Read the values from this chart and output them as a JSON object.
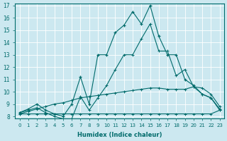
{
  "xlabel": "Humidex (Indice chaleur)",
  "bg_color": "#cce8f0",
  "line_color": "#006b6b",
  "grid_color": "#ffffff",
  "xmin": 0,
  "xmax": 23,
  "ymin": 8,
  "ymax": 17,
  "line1_x": [
    0,
    1,
    2,
    3,
    4,
    5,
    6,
    7,
    8,
    9,
    10,
    11,
    12,
    13,
    14,
    15,
    16,
    17,
    18,
    19,
    20,
    21,
    22,
    23
  ],
  "line1_y": [
    8.2,
    8.2,
    8.2,
    8.2,
    8.2,
    8.2,
    8.2,
    8.2,
    8.2,
    8.2,
    8.2,
    8.2,
    8.2,
    8.2,
    8.2,
    8.2,
    8.2,
    8.2,
    8.2,
    8.2,
    8.2,
    8.2,
    8.2,
    8.5
  ],
  "line2_x": [
    0,
    1,
    2,
    3,
    4,
    5,
    6,
    7,
    8,
    9,
    10,
    11,
    12,
    13,
    14,
    15,
    16,
    17,
    18,
    19,
    20,
    21,
    22,
    23
  ],
  "line2_y": [
    8.2,
    8.4,
    8.6,
    8.8,
    9.0,
    9.1,
    9.3,
    9.5,
    9.6,
    9.7,
    9.8,
    9.9,
    10.0,
    10.1,
    10.2,
    10.3,
    10.3,
    10.2,
    10.2,
    10.2,
    10.4,
    10.3,
    9.8,
    8.8
  ],
  "line3_x": [
    0,
    1,
    2,
    3,
    4,
    5,
    6,
    7,
    8,
    9,
    10,
    11,
    12,
    13,
    14,
    15,
    16,
    17,
    18,
    19,
    20,
    21,
    22,
    23
  ],
  "line3_y": [
    8.3,
    8.5,
    8.7,
    8.3,
    8.0,
    7.8,
    7.8,
    9.6,
    8.5,
    9.5,
    10.5,
    11.8,
    13.0,
    13.0,
    14.3,
    15.5,
    13.3,
    13.3,
    11.3,
    11.8,
    10.4,
    9.8,
    9.5,
    8.5
  ],
  "line4_x": [
    0,
    1,
    2,
    3,
    4,
    5,
    6,
    7,
    8,
    9,
    10,
    11,
    12,
    13,
    14,
    15,
    16,
    17,
    18,
    19,
    20,
    21,
    22,
    23
  ],
  "line4_y": [
    8.3,
    8.6,
    9.0,
    8.5,
    8.2,
    8.0,
    9.0,
    11.2,
    9.0,
    13.0,
    13.0,
    14.8,
    15.4,
    16.5,
    15.5,
    17.0,
    14.5,
    13.0,
    13.0,
    11.0,
    10.5,
    9.8,
    9.5,
    8.6
  ],
  "xtick_labels": [
    "0",
    "1",
    "2",
    "3",
    "4",
    "5",
    "6",
    "7",
    "8",
    "9",
    "10",
    "11",
    "12",
    "13",
    "14",
    "15",
    "16",
    "17",
    "18",
    "19",
    "20",
    "21",
    "22",
    "23"
  ],
  "ytick_labels": [
    "8",
    "9",
    "10",
    "11",
    "12",
    "13",
    "14",
    "15",
    "16",
    "17"
  ]
}
